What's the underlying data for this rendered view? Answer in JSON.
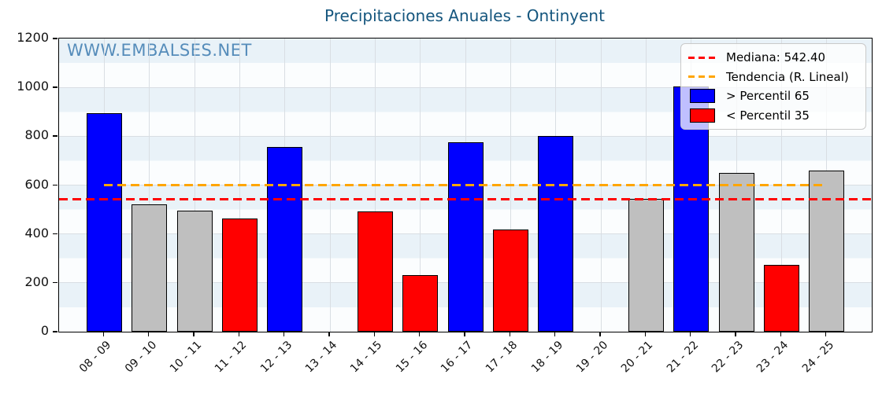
{
  "chart_data": {
    "type": "bar",
    "title": "Precipitaciones Anuales - Ontinyent",
    "watermark": "WWW.EMBALSES.NET",
    "categories": [
      "08 - 09",
      "09 - 10",
      "10 - 11",
      "11 - 12",
      "12 - 13",
      "13 - 14",
      "14 - 15",
      "15 - 16",
      "16 - 17",
      "17 - 18",
      "18 - 19",
      "19 - 20",
      "20 - 21",
      "21 - 22",
      "22 - 23",
      "23 - 24",
      "24 - 25"
    ],
    "values": [
      895,
      520,
      497,
      463,
      757,
      null,
      492,
      233,
      775,
      418,
      800,
      null,
      545,
      1005,
      649,
      272,
      660
    ],
    "bar_classes": [
      "above",
      "mid",
      "mid",
      "below",
      "above",
      null,
      "below",
      "below",
      "above",
      "below",
      "above",
      null,
      "mid",
      "above",
      "mid",
      "below",
      "mid"
    ],
    "median": 542.4,
    "trend": {
      "value_start": 601,
      "value_end": 600,
      "start_category_index": 0,
      "end_category_index": 16
    },
    "ylim": [
      0,
      1200
    ],
    "yticks": [
      0,
      200,
      400,
      600,
      800,
      1000,
      1200
    ],
    "grid": "on",
    "legend_position": "upper right",
    "legend": [
      {
        "swatch": "dashed-line",
        "color_key": "median_line",
        "label": "Mediana: 542.40"
      },
      {
        "swatch": "dashed-line",
        "color_key": "trend_line",
        "label": "Tendencia (R. Lineal)"
      },
      {
        "swatch": "patch",
        "color_key": "bar_above_p65",
        "label": "> Percentil 65"
      },
      {
        "swatch": "patch",
        "color_key": "bar_below_p35",
        "label": "< Percentil 35"
      }
    ],
    "colors": {
      "bar_above_p65": "#0000ff",
      "bar_below_p35": "#ff0000",
      "bar_mid": "#bfbfbf",
      "bar_edge": "#000000",
      "median_line": "#ff0000",
      "trend_line": "#ffa500",
      "title": "#15567e",
      "watermark": "#4682b4",
      "stripe_light": "#e9f2f8",
      "stripe_white": "#fbfdfe",
      "grid_line": "#d9dee3"
    }
  }
}
